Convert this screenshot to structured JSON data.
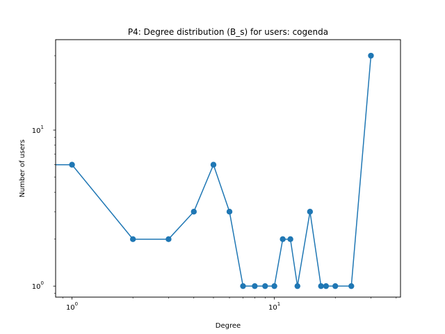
{
  "chart_data": {
    "type": "line",
    "title": "P4: Degree distribution (B_s) for users: cogenda",
    "xlabel": "Degree",
    "ylabel": "Number of users",
    "xscale": "log",
    "yscale": "log",
    "xlim": [
      0.83,
      42
    ],
    "ylim": [
      0.85,
      38
    ],
    "grid": false,
    "x_ticks": [
      {
        "value": 1,
        "base": "10",
        "exp": "0"
      },
      {
        "value": 10,
        "base": "10",
        "exp": "1"
      }
    ],
    "y_ticks": [
      {
        "value": 1,
        "base": "10",
        "exp": "0"
      },
      {
        "value": 10,
        "base": "10",
        "exp": "1"
      }
    ],
    "color": "#1f77b4",
    "series": [
      {
        "x": [
          0,
          1,
          2,
          3,
          4,
          5,
          6,
          7,
          8,
          9,
          10,
          11,
          12,
          13,
          15,
          17,
          18,
          20,
          24,
          30
        ],
        "y": [
          6,
          6,
          2,
          2,
          3,
          6,
          3,
          1,
          1,
          1,
          1,
          2,
          2,
          1,
          3,
          1,
          1,
          1,
          1,
          30
        ]
      }
    ]
  }
}
